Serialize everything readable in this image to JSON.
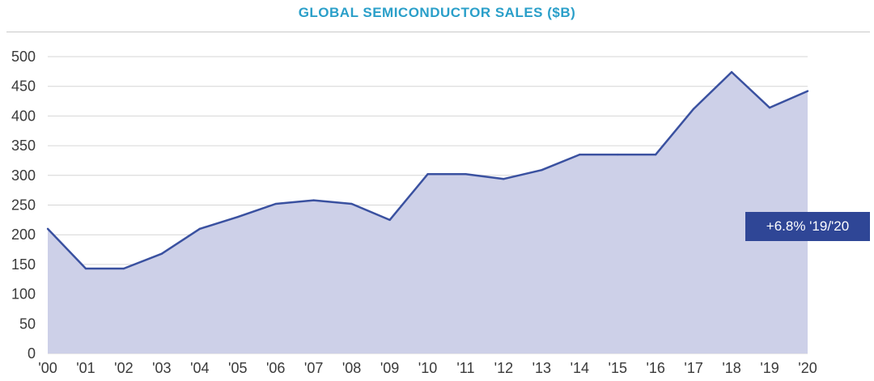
{
  "chart_data": {
    "type": "area",
    "title": "GLOBAL SEMICONDUCTOR SALES ($B)",
    "xlabel": "",
    "ylabel": "",
    "categories": [
      "'00",
      "'01",
      "'02",
      "'03",
      "'04",
      "'05",
      "'06",
      "'07",
      "'08",
      "'09",
      "'10",
      "'11",
      "'12",
      "'13",
      "'14",
      "'15",
      "'16",
      "'17",
      "'18",
      "'19",
      "'20"
    ],
    "series": [
      {
        "values": [
          210,
          143,
          143,
          168,
          210,
          230,
          252,
          258,
          252,
          225,
          302,
          302,
          294,
          309,
          335,
          335,
          335,
          412,
          474,
          414,
          442
        ]
      }
    ],
    "ylim": [
      0,
      500
    ],
    "yticks": [
      0,
      50,
      100,
      150,
      200,
      250,
      300,
      350,
      400,
      450,
      500
    ],
    "grid": true,
    "annotation": "+6.8% '19/'20",
    "colors": {
      "fill": "#cdd0e8",
      "line": "#3a51a0",
      "grid": "#d6d6d6",
      "title": "#2a9fc9",
      "callout_bg": "#2f4696"
    }
  }
}
